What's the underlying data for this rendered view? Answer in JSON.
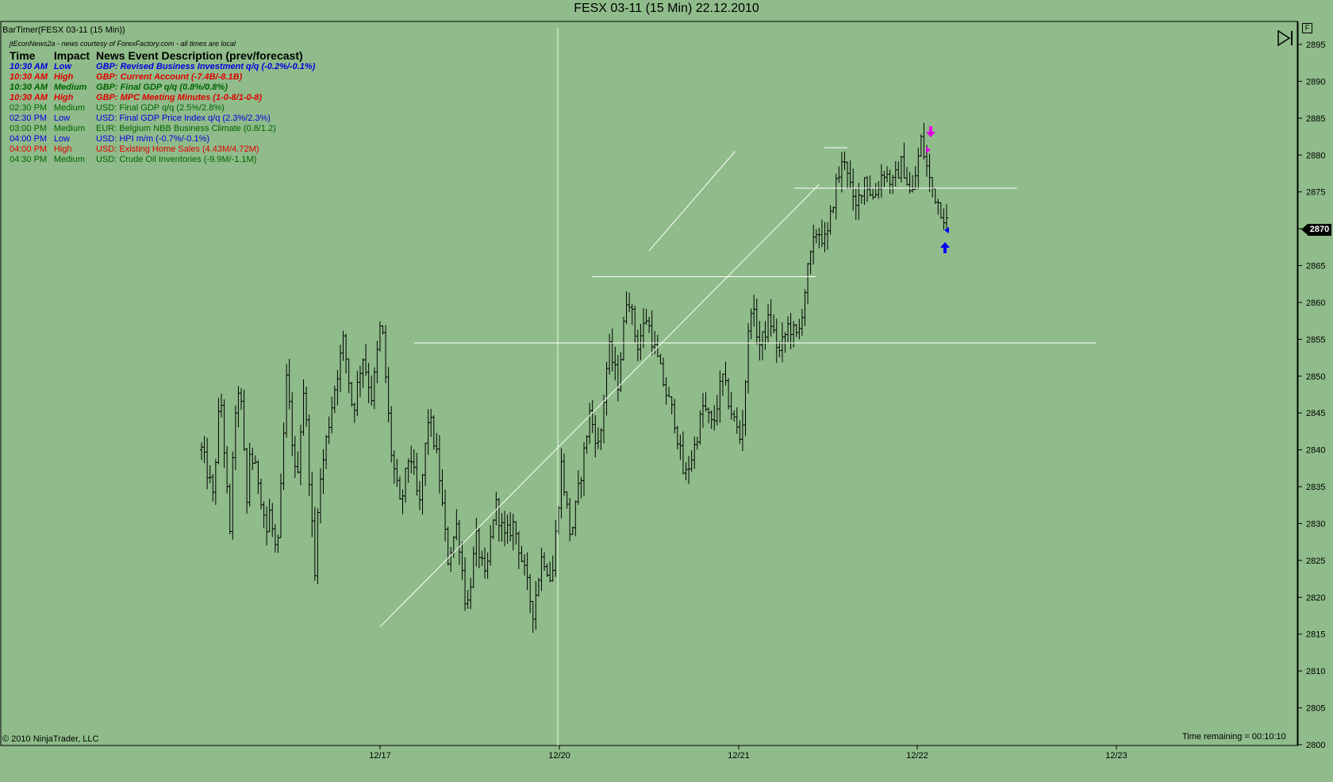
{
  "title": "FESX 03-11 (15 Min)  22.12.2010",
  "bar_timer_label": "BarTimer(FESX 03-11 (15 Min))",
  "news": {
    "source": "jtEconNews2a - news courtesy of ForexFactory.com - all times are local",
    "headers": [
      "Time",
      "Impact",
      "News Event Description (prev/forecast)"
    ],
    "rows": [
      {
        "time": "10:30 AM",
        "impact": "Low",
        "desc": "GBP: Revised Business Investment q/q (-0.2%/-0.1%)",
        "color": "#0000e0",
        "highlight": true
      },
      {
        "time": "10:30 AM",
        "impact": "High",
        "desc": "GBP: Current Account (-7.4B/-8.1B)",
        "color": "#e00000",
        "highlight": true
      },
      {
        "time": "10:30 AM",
        "impact": "Medium",
        "desc": "GBP: Final GDP q/q (0.8%/0.8%)",
        "color": "#006400",
        "highlight": true
      },
      {
        "time": "10:30 AM",
        "impact": "High",
        "desc": "GBP: MPC Meeting Minutes (1-0-8/1-0-8)",
        "color": "#e00000",
        "highlight": true
      },
      {
        "time": "02:30 PM",
        "impact": "Medium",
        "desc": "USD: Final GDP q/q (2.5%/2.8%)",
        "color": "#006400",
        "highlight": false
      },
      {
        "time": "02:30 PM",
        "impact": "Low",
        "desc": "USD: Final GDP Price Index q/q (2.3%/2.3%)",
        "color": "#0000e0",
        "highlight": false
      },
      {
        "time": "03:00 PM",
        "impact": "Medium",
        "desc": "EUR: Belgium NBB Business Climate (0.8/1.2)",
        "color": "#006400",
        "highlight": false
      },
      {
        "time": "04:00 PM",
        "impact": "Low",
        "desc": "USD: HPI m/m (-0.7%/-0.1%)",
        "color": "#0000e0",
        "highlight": false
      },
      {
        "time": "04:00 PM",
        "impact": "High",
        "desc": "USD: Existing Home Sales (4.43M/4.72M)",
        "color": "#e00000",
        "highlight": false
      },
      {
        "time": "04:30 PM",
        "impact": "Medium",
        "desc": "USD: Crude Oil Inventories (-9.9M/-1.1M)",
        "color": "#006400",
        "highlight": false
      }
    ]
  },
  "copyright": "© 2010 NinjaTrader, LLC",
  "time_remaining": "Time remaining = 00:10:10",
  "current_price": "2870",
  "f_button": "F",
  "icons": {
    "play_end": "play-to-end-icon",
    "down_arrow": "magenta-down-arrow-icon",
    "up_arrow": "blue-up-arrow-icon"
  },
  "chart_data": {
    "type": "ohlc",
    "ylim": [
      2800,
      2897
    ],
    "yticks": [
      2800,
      2805,
      2810,
      2815,
      2820,
      2825,
      2830,
      2835,
      2840,
      2845,
      2850,
      2855,
      2860,
      2865,
      2870,
      2875,
      2880,
      2885,
      2890,
      2895
    ],
    "xlabels": [
      "12/17",
      "12/20",
      "12/21",
      "12/22",
      "12/23"
    ],
    "colors": {
      "background": "#8fbc8a",
      "bars": "#000000",
      "drawings": "#ffffff"
    },
    "series_path": [
      [
        2840,
        2835
      ],
      [
        2830,
        2848
      ],
      [
        2848,
        2828
      ],
      [
        2835,
        2850
      ],
      [
        2850,
        2828
      ],
      [
        2840,
        2836
      ],
      [
        2836,
        2828
      ],
      [
        2833,
        2825
      ],
      [
        2825,
        2850
      ],
      [
        2850,
        2835
      ],
      [
        2835,
        2852
      ],
      [
        2845,
        2822
      ],
      [
        2830,
        2840
      ],
      [
        2840,
        2848
      ],
      [
        2848,
        2855
      ],
      [
        2855,
        2845
      ],
      [
        2845,
        2853
      ],
      [
        2853,
        2847
      ],
      [
        2847,
        2858
      ],
      [
        2858,
        2840
      ],
      [
        2840,
        2832
      ],
      [
        2832,
        2840
      ],
      [
        2840,
        2832
      ],
      [
        2832,
        2845
      ],
      [
        2845,
        2838
      ],
      [
        2838,
        2825
      ],
      [
        2825,
        2830
      ],
      [
        2830,
        2818
      ],
      [
        2818,
        2828
      ],
      [
        2828,
        2822
      ],
      [
        2822,
        2833
      ],
      [
        2833,
        2828
      ],
      [
        2828,
        2830
      ],
      [
        2830,
        2824
      ],
      [
        2824,
        2818
      ],
      [
        2818,
        2826
      ],
      [
        2826,
        2822
      ],
      [
        2822,
        2838
      ],
      [
        2838,
        2828
      ],
      [
        2828,
        2836
      ],
      [
        2836,
        2845
      ],
      [
        2845,
        2840
      ],
      [
        2840,
        2854
      ],
      [
        2854,
        2849
      ],
      [
        2849,
        2862
      ],
      [
        2862,
        2854
      ],
      [
        2854,
        2858
      ],
      [
        2858,
        2853
      ],
      [
        2853,
        2848
      ],
      [
        2848,
        2844
      ],
      [
        2844,
        2836
      ],
      [
        2836,
        2840
      ],
      [
        2840,
        2846
      ],
      [
        2846,
        2843
      ],
      [
        2843,
        2850
      ],
      [
        2850,
        2845
      ],
      [
        2845,
        2841
      ],
      [
        2841,
        2860
      ],
      [
        2860,
        2854
      ],
      [
        2854,
        2858
      ],
      [
        2858,
        2853
      ],
      [
        2853,
        2857
      ],
      [
        2857,
        2855
      ],
      [
        2855,
        2864
      ],
      [
        2864,
        2870
      ],
      [
        2870,
        2868
      ],
      [
        2868,
        2876
      ],
      [
        2876,
        2880
      ],
      [
        2880,
        2872
      ],
      [
        2872,
        2877
      ],
      [
        2877,
        2874
      ],
      [
        2874,
        2878
      ],
      [
        2878,
        2876
      ],
      [
        2876,
        2879
      ],
      [
        2879,
        2874
      ],
      [
        2874,
        2882
      ],
      [
        2882,
        2876
      ],
      [
        2876,
        2873
      ],
      [
        2873,
        2870
      ]
    ],
    "drawings": {
      "horizontal_lines": [
        {
          "price": 2854.5,
          "from_day": 0.19,
          "to_day": 3.9
        },
        {
          "price": 2863.5,
          "from_day": 1.18,
          "to_day": 2.43
        },
        {
          "price": 2875.5,
          "from_day": 2.31,
          "to_day": 3.5
        },
        {
          "price": 2881,
          "from_day": 2.48,
          "to_day": 2.61
        }
      ],
      "trend_lines": [
        {
          "from": [
            0,
            2816
          ],
          "to": [
            2.45,
            2876
          ]
        },
        {
          "from": [
            1.5,
            2867
          ],
          "to": [
            1.98,
            2880.5
          ]
        }
      ]
    }
  }
}
